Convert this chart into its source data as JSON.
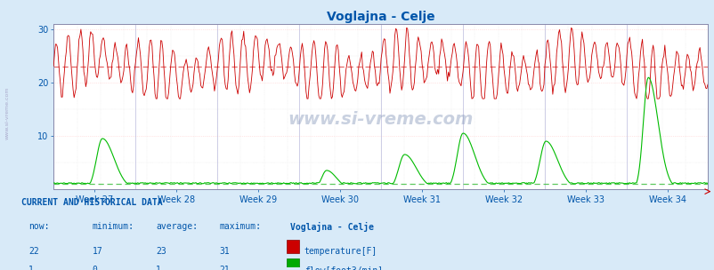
{
  "title": "Voglajna - Celje",
  "bg_color": "#d8eaf8",
  "plot_bg_color": "#ffffff",
  "fig_width": 8.03,
  "fig_height": 3.04,
  "dpi": 100,
  "ylim": [
    0,
    31
  ],
  "yticks": [
    10,
    20,
    30
  ],
  "x_weeks": [
    "Week 27",
    "Week 28",
    "Week 29",
    "Week 30",
    "Week 31",
    "Week 32",
    "Week 33",
    "Week 34"
  ],
  "temp_color": "#cc0000",
  "flow_color": "#00bb00",
  "avg_temp_color": "#dd4444",
  "avg_flow_color": "#33bb33",
  "temp_avg": 23,
  "flow_avg": 1,
  "n_points": 672,
  "watermark": "www.si-vreme.com",
  "footer_title": "CURRENT AND HISTORICAL DATA",
  "footer_cols": [
    "now:",
    "minimum:",
    "average:",
    "maximum:",
    "Voglajna - Celje"
  ],
  "temp_row": [
    "22",
    "17",
    "23",
    "31",
    "temperature[F]"
  ],
  "flow_row": [
    "1",
    "0",
    "1",
    "21",
    "flow[foot3/min]"
  ],
  "grid_color": "#dddddd",
  "grid_major_color": "#ffcccc",
  "text_color": "#0055aa",
  "sidebar_text_color": "#aaaacc",
  "temp_box_color": "#cc0000",
  "flow_box_color": "#00aa00",
  "temp_box_edge": "#880000",
  "flow_box_edge": "#007700"
}
